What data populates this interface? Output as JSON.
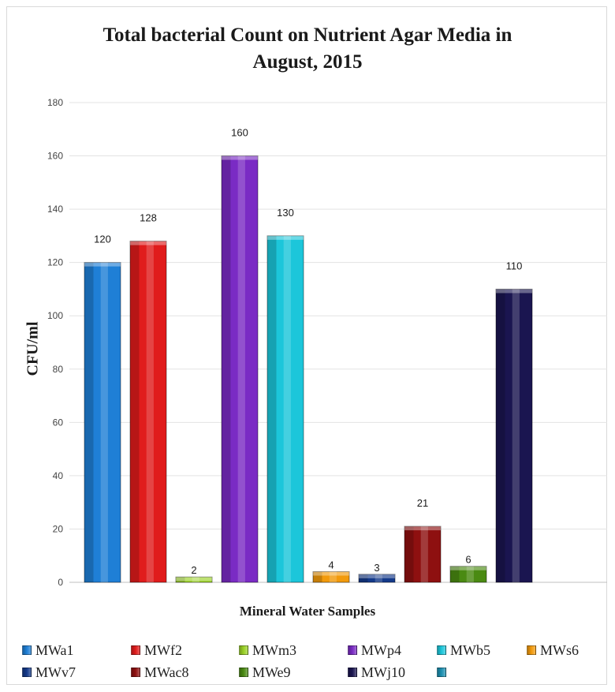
{
  "chart_data": {
    "type": "bar",
    "title_lines": [
      "Total bacterial Count on Nutrient Agar Media in",
      "August, 2015"
    ],
    "xlabel": "Mineral Water Samples",
    "ylabel": "CFU/ml",
    "ylim": [
      0,
      180
    ],
    "yticks": [
      0,
      20,
      40,
      60,
      80,
      100,
      120,
      140,
      160,
      180
    ],
    "grid": true,
    "legend_position": "bottom",
    "series": [
      {
        "name": "MWa1",
        "value": 120,
        "color": "#1f7fd6",
        "label": "120"
      },
      {
        "name": "MWf2",
        "value": 128,
        "color": "#e01c1c",
        "label": "128"
      },
      {
        "name": "MWm3",
        "value": 2,
        "color": "#9ad126",
        "label": "2"
      },
      {
        "name": "MWp4",
        "value": 160,
        "color": "#7a2bc4",
        "label": "160"
      },
      {
        "name": "MWb5",
        "value": 130,
        "color": "#1cc6da",
        "label": "130"
      },
      {
        "name": "MWs6",
        "value": 4,
        "color": "#f29a0c",
        "label": "4"
      },
      {
        "name": "MWv7",
        "value": 3,
        "color": "#143a8a",
        "label": "3"
      },
      {
        "name": "MWac8",
        "value": 21,
        "color": "#8e1010",
        "label": "21"
      },
      {
        "name": "MWe9",
        "value": 6,
        "color": "#4a8a12",
        "label": "6"
      },
      {
        "name": "MWj10",
        "value": 110,
        "color": "#1a1550",
        "label": "110"
      },
      {
        "name": "",
        "value": null,
        "color": "#1c8fb0",
        "label": ""
      }
    ]
  }
}
